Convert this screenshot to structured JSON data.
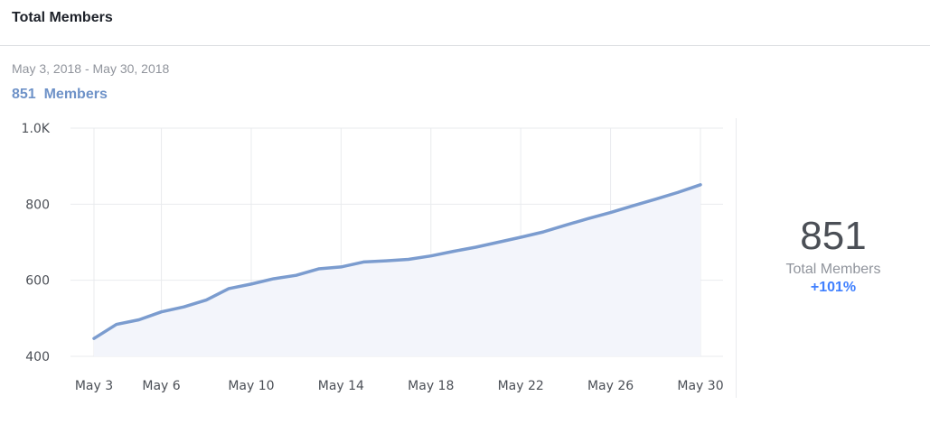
{
  "header": {
    "title": "Total Members"
  },
  "summary": {
    "date_range": "May 3, 2018 - May 30, 2018",
    "members_count": "851",
    "members_label": "Members",
    "big_value": "851",
    "big_label": "Total Members",
    "change": "+101%"
  },
  "colors": {
    "line": "#7b9ccf",
    "fill": "#f3f5fb",
    "accent": "#4080ff",
    "grid": "#e9ebee"
  },
  "chart_data": {
    "type": "area",
    "x": [
      "May 3",
      "May 4",
      "May 5",
      "May 6",
      "May 7",
      "May 8",
      "May 9",
      "May 10",
      "May 11",
      "May 12",
      "May 13",
      "May 14",
      "May 15",
      "May 16",
      "May 17",
      "May 18",
      "May 19",
      "May 20",
      "May 21",
      "May 22",
      "May 23",
      "May 24",
      "May 25",
      "May 26",
      "May 27",
      "May 28",
      "May 29",
      "May 30"
    ],
    "series": [
      {
        "values": [
          447,
          484,
          496,
          517,
          530,
          548,
          578,
          590,
          604,
          613,
          630,
          635,
          648,
          651,
          655,
          664,
          676,
          687,
          700,
          713,
          727,
          745,
          762,
          778,
          796,
          813,
          831,
          851
        ]
      }
    ],
    "ylim": [
      400,
      1000
    ],
    "yticks": [
      400,
      600,
      800,
      1000
    ],
    "ytick_labels": [
      "400",
      "600",
      "800",
      "1.0K"
    ],
    "xtick_labels": [
      "May 3",
      "May 6",
      "May 10",
      "May 14",
      "May 18",
      "May 22",
      "May 26",
      "May 30"
    ],
    "xtick_dates": [
      "May 3",
      "May 6",
      "May 10",
      "May 14",
      "May 18",
      "May 22",
      "May 26",
      "May 30"
    ],
    "grid": true,
    "legend": "none"
  }
}
